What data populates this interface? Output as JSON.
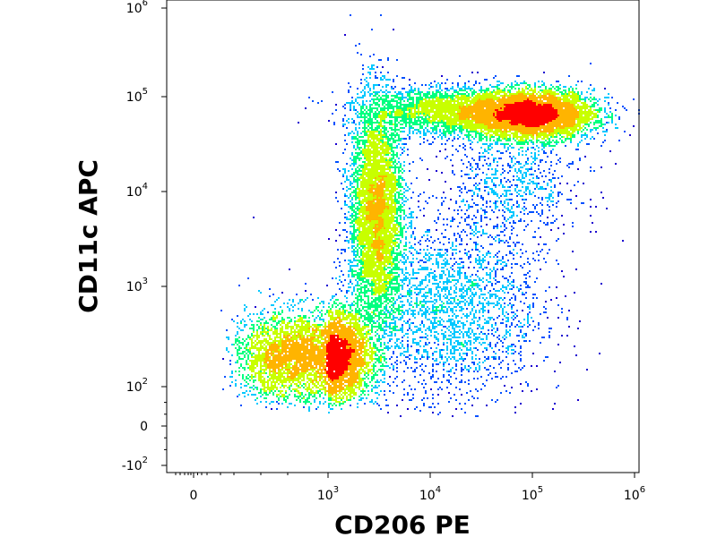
{
  "chart_data": {
    "type": "scatter",
    "subtype": "flow-cytometry-density-dot-plot",
    "xlabel": "CD206 PE",
    "ylabel": "CD11c APC",
    "x_scale": "biexponential",
    "y_scale": "biexponential",
    "xlim": [
      -300,
      1200000
    ],
    "ylim": [
      -150,
      1200000
    ],
    "x_ticks": [
      {
        "value": 0,
        "base": "0",
        "exp": ""
      },
      {
        "value": 1000,
        "base": "10",
        "exp": "3"
      },
      {
        "value": 10000,
        "base": "10",
        "exp": "4"
      },
      {
        "value": 100000,
        "base": "10",
        "exp": "5"
      },
      {
        "value": 1000000,
        "base": "10",
        "exp": "6"
      }
    ],
    "y_ticks": [
      {
        "value": -100,
        "base": "-10",
        "exp": "2"
      },
      {
        "value": 0,
        "base": "0",
        "exp": ""
      },
      {
        "value": 100,
        "base": "10",
        "exp": "2"
      },
      {
        "value": 1000,
        "base": "10",
        "exp": "3"
      },
      {
        "value": 10000,
        "base": "10",
        "exp": "4"
      },
      {
        "value": 100000,
        "base": "10",
        "exp": "5"
      },
      {
        "value": 1000000,
        "base": "10",
        "exp": "6"
      }
    ],
    "grid": false,
    "legend": "none",
    "density_colormap": [
      "#1a00d0",
      "#0050ff",
      "#00c8ff",
      "#00ff80",
      "#c8ff00",
      "#ffb400",
      "#ff0000"
    ],
    "populations": [
      {
        "name": "",
        "center_x": 1000,
        "center_y": 200,
        "spread_x_decades": 0.2,
        "spread_y_decades": 0.22,
        "count": 14000
      },
      {
        "name": "",
        "center_x": 3000,
        "center_y": 6000,
        "spread_x_decades": 0.13,
        "spread_y_decades": 0.6,
        "count": 7000
      },
      {
        "name": "",
        "center_x": 100000,
        "center_y": 65000,
        "spread_x_decades": 0.3,
        "spread_y_decades": 0.13,
        "count": 9000
      },
      {
        "name": "",
        "center_x": 20000,
        "center_y": 70000,
        "spread_x_decades": 0.45,
        "spread_y_decades": 0.12,
        "count": 3500
      },
      {
        "name": "",
        "center_x": 15000,
        "center_y": 600,
        "spread_x_decades": 0.45,
        "spread_y_decades": 0.45,
        "count": 2500
      },
      {
        "name": "",
        "center_x": 60000,
        "center_y": 12000,
        "spread_x_decades": 0.35,
        "spread_y_decades": 0.35,
        "count": 900
      }
    ]
  }
}
